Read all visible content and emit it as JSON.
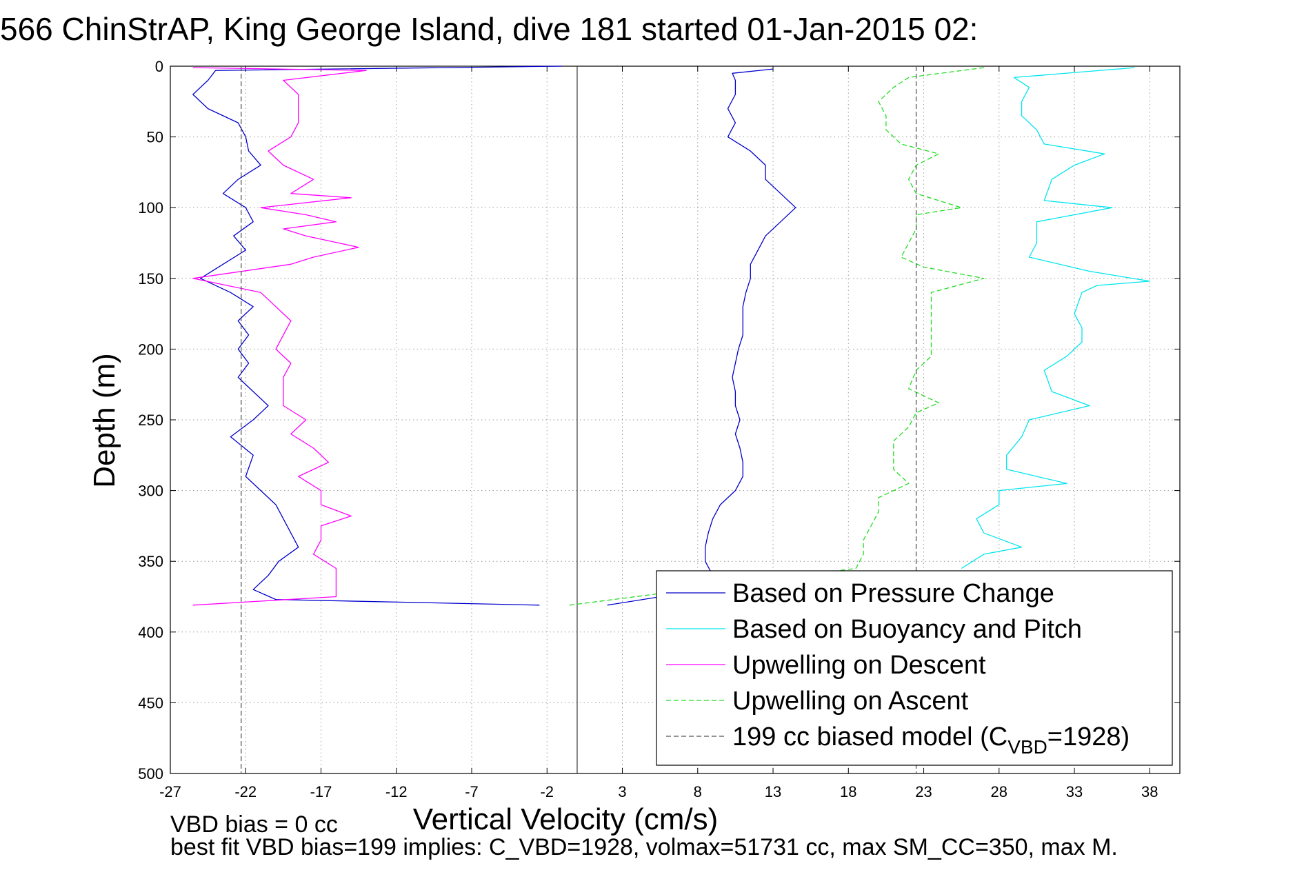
{
  "chart_data": {
    "type": "line",
    "title": "566 ChinStrAP, King George Island, dive 181 started 01-Jan-2015 02:",
    "xlabel": "Vertical Velocity (cm/s)",
    "ylabel": "Depth (m)",
    "xlim": [
      -27,
      40
    ],
    "ylim": [
      500,
      0
    ],
    "y_reversed": true,
    "grid": true,
    "x_ticks": [
      -27,
      -22,
      -17,
      -12,
      -7,
      -2,
      3,
      8,
      13,
      18,
      23,
      28,
      33,
      38
    ],
    "y_ticks": [
      0,
      50,
      100,
      150,
      200,
      250,
      300,
      350,
      400,
      450,
      500
    ],
    "zero_line_x": 0,
    "legend_position": "lower-right",
    "footer_lines": [
      "VBD bias = 0 cc",
      "best fit VBD bias=199 implies: C_VBD=1928, volmax=51731 cc, max SM_CC=350, max M."
    ],
    "series": [
      {
        "name": "Based on Pressure Change",
        "color": "#0000cc",
        "dash": "solid",
        "side": "descent",
        "points": [
          [
            -1,
            0
          ],
          [
            -24,
            3
          ],
          [
            -24.5,
            10
          ],
          [
            -25.5,
            20
          ],
          [
            -24.5,
            30
          ],
          [
            -22.5,
            40
          ],
          [
            -22,
            50
          ],
          [
            -21.8,
            60
          ],
          [
            -21,
            70
          ],
          [
            -22.5,
            80
          ],
          [
            -23.5,
            90
          ],
          [
            -22,
            100
          ],
          [
            -21.5,
            110
          ],
          [
            -22.8,
            120
          ],
          [
            -22,
            130
          ],
          [
            -23.5,
            140
          ],
          [
            -25,
            150
          ],
          [
            -23,
            160
          ],
          [
            -21.5,
            170
          ],
          [
            -22.5,
            180
          ],
          [
            -21.8,
            190
          ],
          [
            -22.5,
            200
          ],
          [
            -21.8,
            210
          ],
          [
            -22.5,
            220
          ],
          [
            -21.5,
            230
          ],
          [
            -20.5,
            240
          ],
          [
            -21.5,
            250
          ],
          [
            -23,
            262
          ],
          [
            -21.5,
            275
          ],
          [
            -22,
            290
          ],
          [
            -21,
            300
          ],
          [
            -20,
            310
          ],
          [
            -19.5,
            320
          ],
          [
            -19,
            330
          ],
          [
            -18.5,
            340
          ],
          [
            -19.8,
            350
          ],
          [
            -20.5,
            360
          ],
          [
            -21.5,
            370
          ],
          [
            -20,
            377
          ],
          [
            -2.5,
            381
          ]
        ]
      },
      {
        "name": "Based on Pressure Change",
        "color": "#0000cc",
        "dash": "solid",
        "side": "ascent",
        "points": [
          [
            2,
            381
          ],
          [
            8.5,
            370
          ],
          [
            9,
            360
          ],
          [
            8.5,
            350
          ],
          [
            8.5,
            340
          ],
          [
            8.7,
            330
          ],
          [
            9,
            320
          ],
          [
            9.5,
            310
          ],
          [
            10.5,
            300
          ],
          [
            11,
            290
          ],
          [
            11,
            280
          ],
          [
            10.8,
            270
          ],
          [
            10.5,
            260
          ],
          [
            10.8,
            250
          ],
          [
            10.5,
            240
          ],
          [
            10.5,
            230
          ],
          [
            10.3,
            220
          ],
          [
            10.5,
            210
          ],
          [
            10.7,
            200
          ],
          [
            11,
            190
          ],
          [
            11,
            180
          ],
          [
            11,
            170
          ],
          [
            11.2,
            160
          ],
          [
            11.5,
            150
          ],
          [
            11.5,
            140
          ],
          [
            12,
            130
          ],
          [
            12.5,
            120
          ],
          [
            13.5,
            110
          ],
          [
            14.5,
            100
          ],
          [
            13.5,
            90
          ],
          [
            12.5,
            80
          ],
          [
            12.5,
            70
          ],
          [
            11.5,
            60
          ],
          [
            10,
            50
          ],
          [
            10.5,
            40
          ],
          [
            10,
            30
          ],
          [
            10.5,
            20
          ],
          [
            10.5,
            10
          ],
          [
            10.3,
            5
          ],
          [
            13,
            2
          ]
        ]
      },
      {
        "name": "Based on Buoyancy and Pitch",
        "color": "#00e5ee",
        "dash": "solid",
        "side": "ascent",
        "points": [
          [
            25.5,
            355
          ],
          [
            27,
            345
          ],
          [
            29.5,
            340
          ],
          [
            27,
            330
          ],
          [
            26.5,
            320
          ],
          [
            28,
            310
          ],
          [
            28,
            300
          ],
          [
            32.5,
            295
          ],
          [
            28.5,
            285
          ],
          [
            28.5,
            275
          ],
          [
            29.5,
            262
          ],
          [
            30,
            250
          ],
          [
            34,
            240
          ],
          [
            31.5,
            230
          ],
          [
            31,
            215
          ],
          [
            32.5,
            205
          ],
          [
            33.5,
            195
          ],
          [
            33.5,
            185
          ],
          [
            33,
            175
          ],
          [
            33.5,
            160
          ],
          [
            34.5,
            155
          ],
          [
            38,
            152
          ],
          [
            34,
            145
          ],
          [
            30,
            135
          ],
          [
            30.5,
            125
          ],
          [
            30.5,
            110
          ],
          [
            33,
            105
          ],
          [
            35.5,
            100
          ],
          [
            31,
            95
          ],
          [
            31.5,
            80
          ],
          [
            33,
            70
          ],
          [
            35,
            62
          ],
          [
            31,
            55
          ],
          [
            30.5,
            45
          ],
          [
            29.5,
            35
          ],
          [
            29.5,
            25
          ],
          [
            30,
            15
          ],
          [
            29,
            8
          ],
          [
            37,
            1
          ]
        ]
      },
      {
        "name": "Upwelling on Descent",
        "color": "#ff00ff",
        "dash": "solid",
        "side": "descent",
        "points": [
          [
            -25.5,
            1
          ],
          [
            -14,
            3
          ],
          [
            -19.5,
            10
          ],
          [
            -18.5,
            20
          ],
          [
            -18.5,
            30
          ],
          [
            -18.5,
            40
          ],
          [
            -19,
            50
          ],
          [
            -20.5,
            60
          ],
          [
            -19.5,
            70
          ],
          [
            -17.5,
            80
          ],
          [
            -19,
            90
          ],
          [
            -15,
            93
          ],
          [
            -21,
            100
          ],
          [
            -18,
            105
          ],
          [
            -16,
            110
          ],
          [
            -19.5,
            115
          ],
          [
            -18,
            120
          ],
          [
            -14.5,
            128
          ],
          [
            -17.5,
            135
          ],
          [
            -19,
            140
          ],
          [
            -25.5,
            150
          ],
          [
            -21,
            160
          ],
          [
            -20,
            170
          ],
          [
            -19,
            180
          ],
          [
            -19.5,
            190
          ],
          [
            -20,
            200
          ],
          [
            -19,
            210
          ],
          [
            -19.5,
            220
          ],
          [
            -19.5,
            230
          ],
          [
            -19.5,
            240
          ],
          [
            -18,
            250
          ],
          [
            -19,
            260
          ],
          [
            -17.5,
            270
          ],
          [
            -16.5,
            280
          ],
          [
            -18.5,
            290
          ],
          [
            -17,
            300
          ],
          [
            -17,
            310
          ],
          [
            -15,
            318
          ],
          [
            -17,
            325
          ],
          [
            -17,
            335
          ],
          [
            -17.5,
            345
          ],
          [
            -16,
            355
          ],
          [
            -16,
            365
          ],
          [
            -16,
            375
          ],
          [
            -25.5,
            381
          ]
        ]
      },
      {
        "name": "Upwelling on Ascent",
        "color": "#22dd22",
        "dash": "dashed",
        "side": "ascent",
        "points": [
          [
            -0.5,
            381
          ],
          [
            18.5,
            355
          ],
          [
            19,
            345
          ],
          [
            19,
            335
          ],
          [
            19.5,
            325
          ],
          [
            20,
            315
          ],
          [
            20,
            305
          ],
          [
            22,
            295
          ],
          [
            21,
            285
          ],
          [
            21,
            275
          ],
          [
            21,
            265
          ],
          [
            22,
            255
          ],
          [
            22.5,
            245
          ],
          [
            24,
            238
          ],
          [
            22,
            228
          ],
          [
            22.5,
            215
          ],
          [
            23.5,
            205
          ],
          [
            23.5,
            195
          ],
          [
            23.5,
            185
          ],
          [
            23.5,
            170
          ],
          [
            23.5,
            160
          ],
          [
            27,
            150
          ],
          [
            23,
            142
          ],
          [
            21.5,
            135
          ],
          [
            22,
            125
          ],
          [
            22.5,
            115
          ],
          [
            22.5,
            105
          ],
          [
            25.5,
            100
          ],
          [
            22.5,
            90
          ],
          [
            22,
            80
          ],
          [
            22.5,
            70
          ],
          [
            24,
            62
          ],
          [
            21.5,
            55
          ],
          [
            20.5,
            45
          ],
          [
            20.5,
            35
          ],
          [
            20,
            25
          ],
          [
            21,
            15
          ],
          [
            22,
            8
          ],
          [
            27,
            1
          ]
        ]
      },
      {
        "name": "199 cc biased model (C_VBD=1928)",
        "color": "#555555",
        "dash": "dashed",
        "side": "both",
        "points": [
          [
            -22.3,
            0
          ],
          [
            -22.3,
            500
          ]
        ],
        "points2": [
          [
            22.5,
            0
          ],
          [
            22.5,
            500
          ]
        ]
      }
    ],
    "legend": [
      {
        "label": "Based on Pressure Change",
        "color": "#0000cc",
        "dash": "solid"
      },
      {
        "label": "Based on Buoyancy and Pitch",
        "color": "#00e5ee",
        "dash": "solid"
      },
      {
        "label": "Upwelling on Descent",
        "color": "#ff00ff",
        "dash": "solid"
      },
      {
        "label": "Upwelling on Ascent",
        "color": "#22dd22",
        "dash": "dashed"
      },
      {
        "label": "199 cc biased model (C",
        "label_sub": "VBD",
        "label_after": "=1928)",
        "color": "#555555",
        "dash": "dashed"
      }
    ]
  }
}
